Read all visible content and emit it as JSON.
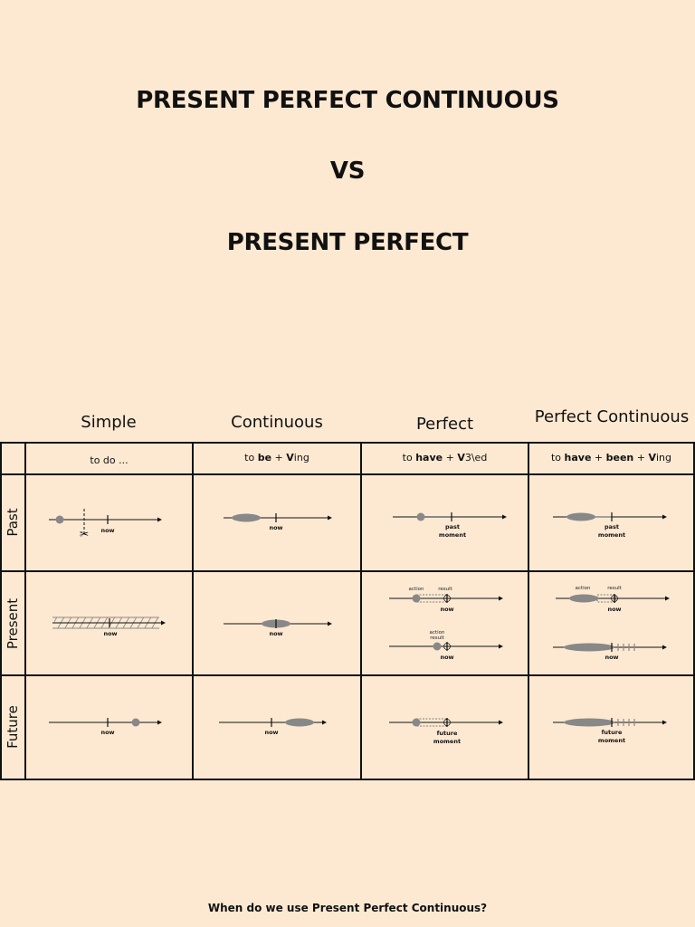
{
  "titles": {
    "line1": "PRESENT PERFECT CONTINUOUS",
    "line2": "VS",
    "line3": "PRESENT PERFECT"
  },
  "columns": [
    "Simple",
    "Continuous",
    "Perfect",
    "Perfect Continuous"
  ],
  "formulas": {
    "simple": "to do ...",
    "continuous": {
      "pre": "to ",
      "b1": "be",
      "mid1": " + ",
      "b2": "V",
      "post": "ing"
    },
    "perfect": {
      "pre": "to ",
      "b1": "have",
      "mid1": " + ",
      "b2": "V",
      "post": "3\\ed"
    },
    "perfect_continuous": {
      "pre": "to ",
      "b1": "have",
      "mid1": " + ",
      "b2": "been",
      "mid2": " + ",
      "b3": "V",
      "post": "ing"
    }
  },
  "rows": [
    "Past",
    "Present",
    "Future"
  ],
  "diagram_labels": {
    "now": "now",
    "past": "past",
    "future": "future",
    "moment": "moment",
    "action": "action",
    "result": "result"
  },
  "bottom_question": "When do we use Present Perfect Continuous?",
  "colors": {
    "background": "#fde9d2",
    "line": "#111111",
    "shape": "#888888"
  }
}
